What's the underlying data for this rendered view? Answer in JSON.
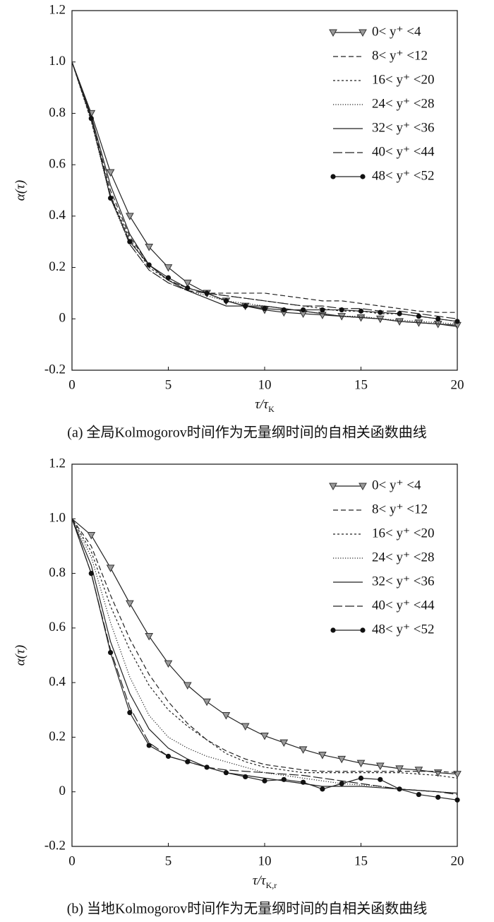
{
  "chart_data": [
    {
      "type": "line",
      "y_label": "α(τ)",
      "x_label": "τ/τ",
      "x_label_sub": "K",
      "caption": "(a) 全局Kolmogorov时间作为无量纲时间的自相关函数曲线",
      "xlim": [
        0,
        20
      ],
      "ylim": [
        -0.2,
        1.2
      ],
      "xticks": [
        0,
        5,
        10,
        15,
        20
      ],
      "yticks": [
        -0.2,
        0,
        0.2,
        0.4,
        0.6,
        0.8,
        {
          "value": 1,
          "label": "1.0"
        },
        1.2
      ],
      "legend": "upper right",
      "x": [
        0,
        1,
        2,
        3,
        4,
        5,
        6,
        7,
        8,
        9,
        10,
        11,
        12,
        13,
        14,
        15,
        16,
        17,
        18,
        19,
        20
      ],
      "series": [
        {
          "name": "0< y⁺ <4",
          "color": "#222",
          "line_style": "solid",
          "marker": "triangle-down",
          "values": [
            1.0,
            0.8,
            0.57,
            0.4,
            0.28,
            0.2,
            0.14,
            0.1,
            0.07,
            0.05,
            0.035,
            0.025,
            0.02,
            0.015,
            0.01,
            0.005,
            0.0,
            -0.01,
            -0.015,
            -0.02,
            -0.025
          ]
        },
        {
          "name": "8< y⁺ <12",
          "color": "#222",
          "line_style": "dashed",
          "marker": "none",
          "values": [
            1.0,
            0.78,
            0.5,
            0.32,
            0.21,
            0.15,
            0.12,
            0.1,
            0.1,
            0.1,
            0.1,
            0.09,
            0.08,
            0.07,
            0.07,
            0.06,
            0.05,
            0.04,
            0.03,
            0.025,
            0.025
          ]
        },
        {
          "name": "16< y⁺ <20",
          "color": "#222",
          "line_style": "short-dashed",
          "marker": "none",
          "values": [
            1.0,
            0.77,
            0.48,
            0.31,
            0.2,
            0.15,
            0.12,
            0.1,
            0.09,
            0.08,
            0.07,
            0.06,
            0.05,
            0.04,
            0.03,
            0.03,
            0.02,
            0.02,
            0.01,
            0.0,
            -0.01
          ]
        },
        {
          "name": "24< y⁺ <28",
          "color": "#222",
          "line_style": "dotted",
          "marker": "none",
          "values": [
            1.0,
            0.77,
            0.47,
            0.29,
            0.19,
            0.14,
            0.11,
            0.09,
            0.07,
            0.06,
            0.05,
            0.04,
            0.03,
            0.02,
            0.01,
            0.01,
            0.0,
            -0.005,
            -0.01,
            -0.015,
            -0.02
          ]
        },
        {
          "name": "32< y⁺ <36",
          "color": "#222",
          "line_style": "solid",
          "marker": "none",
          "values": [
            1.0,
            0.79,
            0.52,
            0.33,
            0.21,
            0.15,
            0.11,
            0.08,
            0.05,
            0.05,
            0.05,
            0.04,
            0.03,
            0.02,
            0.01,
            0.005,
            0.0,
            -0.01,
            -0.015,
            -0.02,
            -0.03
          ]
        },
        {
          "name": "40< y⁺ <44",
          "color": "#222",
          "line_style": "long-dashed",
          "marker": "none",
          "values": [
            1.0,
            0.78,
            0.48,
            0.29,
            0.19,
            0.14,
            0.11,
            0.1,
            0.09,
            0.08,
            0.07,
            0.06,
            0.05,
            0.05,
            0.04,
            0.04,
            0.03,
            0.03,
            0.02,
            0.01,
            0.0
          ]
        },
        {
          "name": "48< y⁺ <52",
          "color": "#222",
          "line_style": "solid",
          "marker": "circle",
          "values": [
            1.0,
            0.78,
            0.47,
            0.3,
            0.21,
            0.16,
            0.12,
            0.1,
            0.07,
            0.05,
            0.04,
            0.035,
            0.035,
            0.035,
            0.035,
            0.03,
            0.025,
            0.02,
            0.01,
            0.0,
            -0.01
          ]
        }
      ]
    },
    {
      "type": "line",
      "y_label": "α(τ)",
      "x_label": "τ/τ",
      "x_label_sub": "K,r",
      "caption": "(b) 当地Kolmogorov时间作为无量纲时间的自相关函数曲线",
      "xlim": [
        0,
        20
      ],
      "ylim": [
        -0.2,
        1.2
      ],
      "xticks": [
        0,
        5,
        10,
        15,
        20
      ],
      "yticks": [
        -0.2,
        0,
        0.2,
        0.4,
        0.6,
        0.8,
        {
          "value": 1,
          "label": "1.0"
        },
        1.2
      ],
      "legend": "upper right",
      "x": [
        0,
        1,
        2,
        3,
        4,
        5,
        6,
        7,
        8,
        9,
        10,
        11,
        12,
        13,
        14,
        15,
        16,
        17,
        18,
        19,
        20
      ],
      "series": [
        {
          "name": "0< y⁺ <4",
          "color": "#222",
          "line_style": "solid",
          "marker": "triangle-down",
          "values": [
            1.0,
            0.94,
            0.82,
            0.69,
            0.57,
            0.47,
            0.39,
            0.33,
            0.28,
            0.24,
            0.205,
            0.18,
            0.155,
            0.135,
            0.12,
            0.105,
            0.095,
            0.085,
            0.08,
            0.07,
            0.065
          ]
        },
        {
          "name": "8< y⁺ <12",
          "color": "#222",
          "line_style": "dashed",
          "marker": "none",
          "values": [
            1.0,
            0.9,
            0.72,
            0.56,
            0.43,
            0.33,
            0.25,
            0.19,
            0.15,
            0.12,
            0.1,
            0.09,
            0.08,
            0.075,
            0.075,
            0.075,
            0.075,
            0.075,
            0.075,
            0.075,
            0.07
          ]
        },
        {
          "name": "16< y⁺ <20",
          "color": "#222",
          "line_style": "short-dashed",
          "marker": "none",
          "values": [
            1.0,
            0.88,
            0.68,
            0.52,
            0.39,
            0.3,
            0.24,
            0.19,
            0.14,
            0.11,
            0.09,
            0.08,
            0.07,
            0.07,
            0.07,
            0.07,
            0.07,
            0.07,
            0.065,
            0.06,
            0.05
          ]
        },
        {
          "name": "24< y⁺ <28",
          "color": "#222",
          "line_style": "dotted",
          "marker": "none",
          "values": [
            1.0,
            0.86,
            0.62,
            0.42,
            0.28,
            0.2,
            0.16,
            0.13,
            0.11,
            0.09,
            0.07,
            0.06,
            0.05,
            0.04,
            0.03,
            0.025,
            0.02,
            0.01,
            0.005,
            0.0,
            -0.005
          ]
        },
        {
          "name": "32< y⁺ <36",
          "color": "#222",
          "line_style": "solid",
          "marker": "none",
          "values": [
            1.0,
            0.83,
            0.55,
            0.36,
            0.23,
            0.16,
            0.12,
            0.09,
            0.07,
            0.06,
            0.05,
            0.04,
            0.03,
            0.02,
            0.02,
            0.02,
            0.015,
            0.01,
            0.005,
            0.0,
            -0.005
          ]
        },
        {
          "name": "40< y⁺ <44",
          "color": "#222",
          "line_style": "long-dashed",
          "marker": "none",
          "values": [
            1.0,
            0.8,
            0.52,
            0.31,
            0.18,
            0.13,
            0.11,
            0.09,
            0.08,
            0.075,
            0.07,
            0.065,
            0.06,
            0.05,
            0.04,
            0.03,
            0.02,
            0.01,
            0.005,
            0.0,
            -0.01
          ]
        },
        {
          "name": "48< y⁺ <52",
          "color": "#222",
          "line_style": "solid",
          "marker": "circle",
          "values": [
            1.0,
            0.8,
            0.51,
            0.29,
            0.17,
            0.13,
            0.11,
            0.09,
            0.07,
            0.055,
            0.04,
            0.045,
            0.035,
            0.01,
            0.03,
            0.05,
            0.045,
            0.01,
            -0.01,
            -0.02,
            -0.03
          ]
        }
      ]
    }
  ]
}
